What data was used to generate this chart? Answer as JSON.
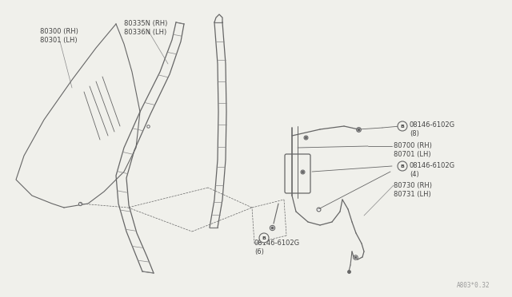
{
  "bg_color": "#f0f0eb",
  "line_color": "#666666",
  "label_color": "#444444",
  "watermark": "A803*0.32",
  "labels": {
    "glass_rh_lh": [
      "80300 (RH)",
      "80301 (LH)"
    ],
    "sash_rh_lh": [
      "80335N (RH)",
      "80336N (LH)"
    ],
    "bolt_top": [
      "08146-6102G",
      "(8)"
    ],
    "regulator_rh_lh": [
      "80700 (RH)",
      "80701 (LH)"
    ],
    "bolt_mid": [
      "08146-6102G",
      "(4)"
    ],
    "handle_rh_lh": [
      "80730 (RH)",
      "80731 (LH)"
    ],
    "bolt_bot": [
      "08146-6102G",
      "(6)"
    ]
  },
  "font_size_label": 6.0,
  "font_size_watermark": 5.5
}
